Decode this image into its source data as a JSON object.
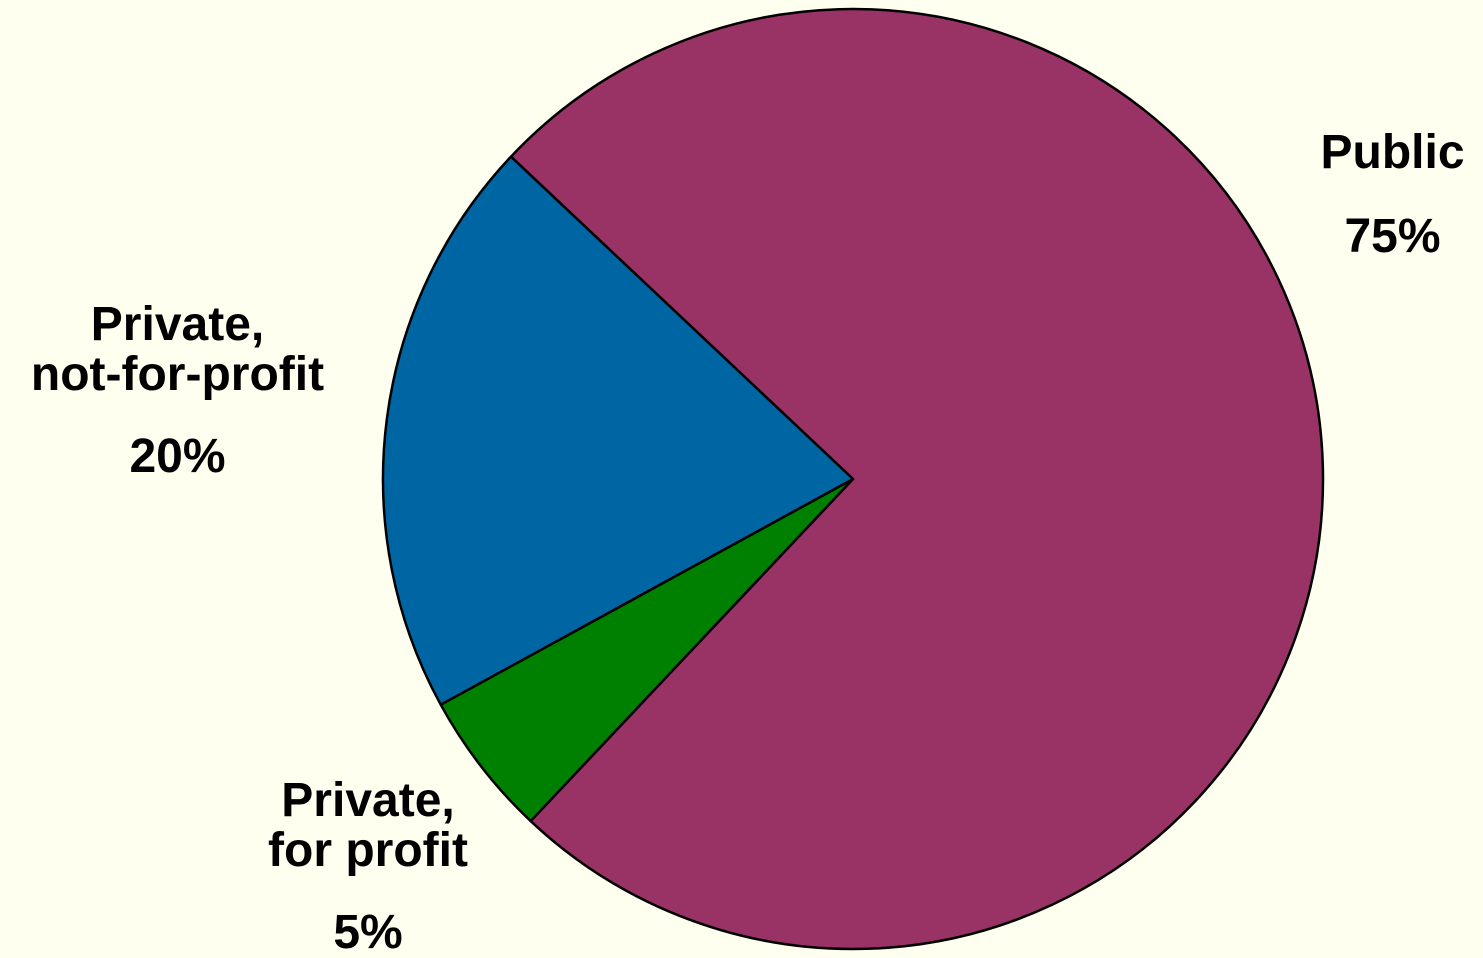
{
  "chart_data": {
    "type": "pie",
    "title": "",
    "slices": [
      {
        "label": "Public",
        "label_lines": [
          "Public"
        ],
        "value": 75,
        "value_label": "75%",
        "color": "#993366"
      },
      {
        "label": "Private, for profit",
        "label_lines": [
          "Private,",
          "for profit"
        ],
        "value": 5,
        "value_label": "5%",
        "color": "#008000"
      },
      {
        "label": "Private, not-for-profit",
        "label_lines": [
          "Private,",
          "not-for-profit"
        ],
        "value": 20,
        "value_label": "20%",
        "color": "#0066A3"
      }
    ],
    "legend": "none",
    "background": "#FFFFF0",
    "start": "top-left boundary at ~313 degrees clockwise from 12 o'clock, public slice first, clockwise"
  }
}
